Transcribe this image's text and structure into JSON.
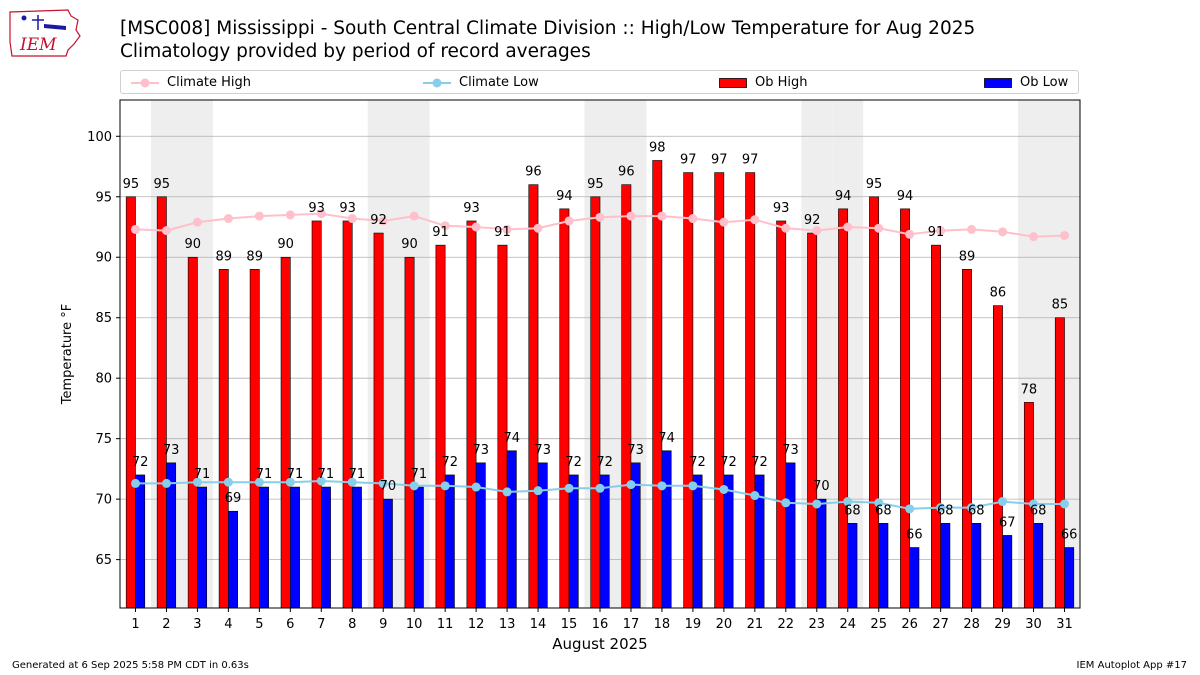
{
  "header": {
    "logo_text": "IEM",
    "title_line1": "[MSC008] Mississippi - South Central Climate Division :: High/Low Temperature for Aug 2025",
    "title_line2": "Climatology provided by period of record averages"
  },
  "colors": {
    "ob_high": "#ff0000",
    "ob_low": "#0000ff",
    "climate_high": "#ffc0cb",
    "climate_low": "#87ceeb",
    "weekend_band": "#eeeeee",
    "grid": "#b0b0b0",
    "logo_red": "#c8102e",
    "logo_blue": "#1a1aa6"
  },
  "legend": [
    {
      "label": "Climate High",
      "kind": "line",
      "color": "#ffc0cb"
    },
    {
      "label": "Climate Low",
      "kind": "line",
      "color": "#87ceeb"
    },
    {
      "label": "Ob High",
      "kind": "bar",
      "color": "#ff0000"
    },
    {
      "label": "Ob Low",
      "kind": "bar",
      "color": "#0000ff"
    }
  ],
  "chart_data": {
    "type": "bar",
    "title": "[MSC008] Mississippi - South Central Climate Division :: High/Low Temperature for Aug 2025",
    "subtitle": "Climatology provided by period of record averages",
    "xlabel": "August 2025",
    "ylabel": "Temperature °F",
    "ylim": [
      61,
      103
    ],
    "yticks": [
      65,
      70,
      75,
      80,
      85,
      90,
      95,
      100
    ],
    "grid": "horizontal",
    "legend_position": "top",
    "categories": [
      "1",
      "2",
      "3",
      "4",
      "5",
      "6",
      "7",
      "8",
      "9",
      "10",
      "11",
      "12",
      "13",
      "14",
      "15",
      "16",
      "17",
      "18",
      "19",
      "20",
      "21",
      "22",
      "23",
      "24",
      "25",
      "26",
      "27",
      "28",
      "29",
      "30",
      "31"
    ],
    "weekend_days": [
      2,
      3,
      9,
      10,
      16,
      17,
      23,
      24,
      30,
      31
    ],
    "series": [
      {
        "name": "Ob High",
        "kind": "bar",
        "values": [
          95,
          95,
          90,
          89,
          89,
          90,
          93,
          93,
          92,
          90,
          91,
          93,
          91,
          96,
          94,
          95,
          96,
          98,
          97,
          97,
          97,
          93,
          92,
          94,
          95,
          94,
          91,
          89,
          86,
          78,
          85
        ]
      },
      {
        "name": "Ob Low",
        "kind": "bar",
        "values": [
          72,
          73,
          71,
          69,
          71,
          71,
          71,
          71,
          70,
          71,
          72,
          73,
          74,
          73,
          72,
          72,
          73,
          74,
          72,
          72,
          72,
          73,
          70,
          68,
          68,
          66,
          68,
          68,
          67,
          68,
          66
        ]
      },
      {
        "name": "Climate High",
        "kind": "line",
        "values": [
          92.3,
          92.2,
          92.9,
          93.2,
          93.4,
          93.5,
          93.6,
          93.2,
          93.0,
          93.4,
          92.6,
          92.5,
          92.3,
          92.4,
          93.0,
          93.3,
          93.4,
          93.4,
          93.2,
          92.9,
          93.1,
          92.4,
          92.2,
          92.5,
          92.4,
          91.9,
          92.2,
          92.3,
          92.1,
          91.7,
          91.8
        ]
      },
      {
        "name": "Climate Low",
        "kind": "line",
        "values": [
          71.3,
          71.3,
          71.4,
          71.4,
          71.4,
          71.4,
          71.5,
          71.4,
          71.3,
          71.1,
          71.1,
          71.0,
          70.6,
          70.7,
          70.9,
          70.9,
          71.2,
          71.1,
          71.1,
          70.8,
          70.3,
          69.7,
          69.6,
          69.8,
          69.7,
          69.2,
          69.3,
          69.3,
          69.8,
          69.6,
          69.6
        ]
      }
    ]
  },
  "footer": {
    "generated": "Generated at 6 Sep 2025 5:58 PM CDT in 0.63s",
    "app": "IEM Autoplot App #17"
  }
}
